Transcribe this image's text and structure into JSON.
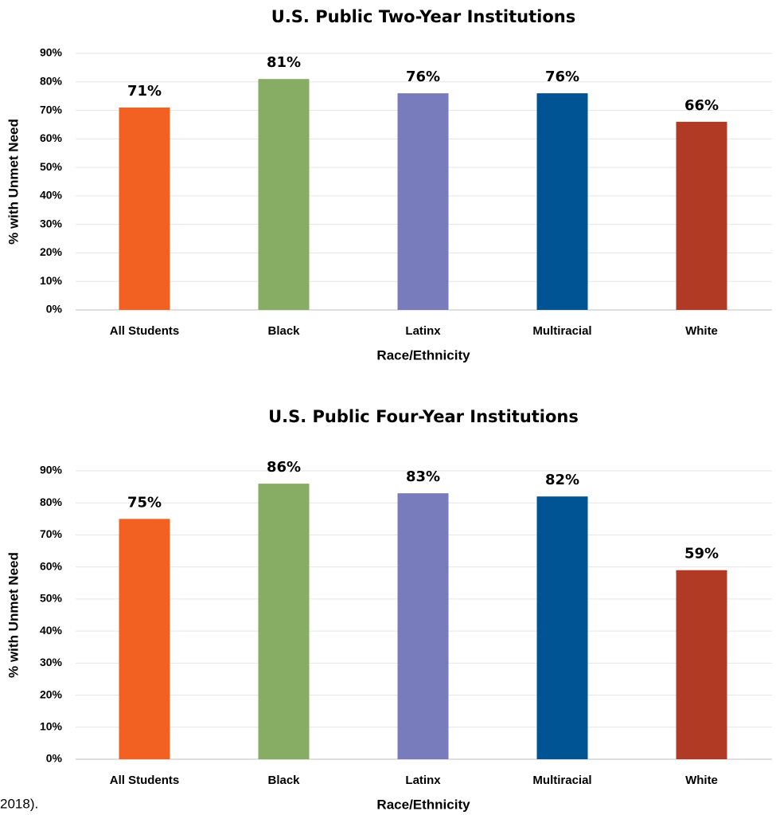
{
  "chart_data": [
    {
      "type": "bar",
      "title": "U.S. Public Two-Year Institutions",
      "x_label": "Race/Ethnicity",
      "y_label": "% with Unmet Need",
      "categories": [
        "All Students",
        "Black",
        "Latinx",
        "Multiracial",
        "White"
      ],
      "values": [
        71,
        81,
        76,
        76,
        66
      ],
      "value_labels": [
        "71%",
        "81%",
        "76%",
        "76%",
        "66%"
      ],
      "colors": [
        "#f26122",
        "#87ac64",
        "#787cbc",
        "#005493",
        "#b03a24"
      ],
      "ylim": [
        0,
        90
      ],
      "yticks": [
        {
          "value": 0,
          "label": "0%"
        },
        {
          "value": 10,
          "label": "10%"
        },
        {
          "value": 20,
          "label": "20%"
        },
        {
          "value": 30,
          "label": "30%"
        },
        {
          "value": 40,
          "label": "40%"
        },
        {
          "value": 50,
          "label": "50%"
        },
        {
          "value": 60,
          "label": "60%"
        },
        {
          "value": 70,
          "label": "70%"
        },
        {
          "value": 80,
          "label": "80%"
        },
        {
          "value": 90,
          "label": "90%"
        }
      ],
      "grid": true
    },
    {
      "type": "bar",
      "title": "U.S. Public Four-Year Institutions",
      "x_label": "Race/Ethnicity",
      "y_label": "% with Unmet Need",
      "categories": [
        "All Students",
        "Black",
        "Latinx",
        "Multiracial",
        "White"
      ],
      "values": [
        75,
        86,
        83,
        82,
        59
      ],
      "value_labels": [
        "75%",
        "86%",
        "83%",
        "82%",
        "59%"
      ],
      "colors": [
        "#f26122",
        "#87ac64",
        "#787cbc",
        "#005493",
        "#b03a24"
      ],
      "ylim": [
        0,
        90
      ],
      "yticks": [
        {
          "value": 0,
          "label": "0%"
        },
        {
          "value": 10,
          "label": "10%"
        },
        {
          "value": 20,
          "label": "20%"
        },
        {
          "value": 30,
          "label": "30%"
        },
        {
          "value": 40,
          "label": "40%"
        },
        {
          "value": 50,
          "label": "50%"
        },
        {
          "value": 60,
          "label": "60%"
        },
        {
          "value": 70,
          "label": "70%"
        },
        {
          "value": 80,
          "label": "80%"
        },
        {
          "value": 90,
          "label": "90%"
        }
      ],
      "grid": true
    }
  ],
  "footnote_fragment": "2018)."
}
